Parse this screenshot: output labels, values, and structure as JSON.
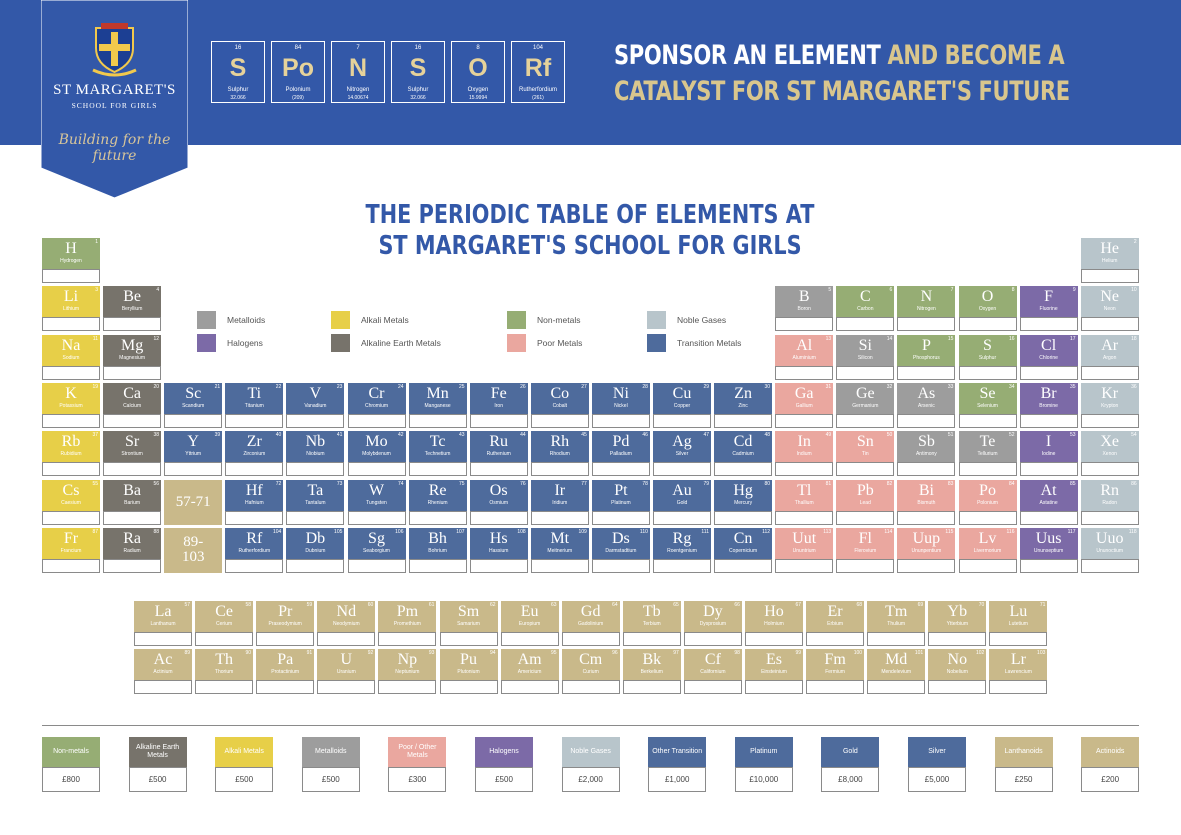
{
  "school": {
    "name": "ST MARGARET'S",
    "sub": "SCHOOL FOR GIRLS",
    "tagline": "Building for the future"
  },
  "sponsor_tiles": [
    {
      "number": "16",
      "symbol": "S",
      "name": "Sulphur",
      "mass": "32.066"
    },
    {
      "number": "84",
      "symbol": "Po",
      "name": "Polonium",
      "mass": "(209)"
    },
    {
      "number": "7",
      "symbol": "N",
      "name": "Nitrogen",
      "mass": "14.00674"
    },
    {
      "number": "16",
      "symbol": "S",
      "name": "Sulphur",
      "mass": "32.066"
    },
    {
      "number": "8",
      "symbol": "O",
      "name": "Oxygen",
      "mass": "15.9994"
    },
    {
      "number": "104",
      "symbol": "Rf",
      "name": "Rutherfordium",
      "mass": "(261)"
    }
  ],
  "headline": {
    "line1_white": "SPONSOR AN ELEMENT",
    "line1_gold": " AND BECOME A",
    "line2_gold": "CATALYST FOR ST MARGARET'S FUTURE"
  },
  "table_title": {
    "line1": "THE PERIODIC TABLE OF ELEMENTS AT",
    "line2": "ST MARGARET'S SCHOOL FOR GIRLS"
  },
  "colors": {
    "banner": "#3358a8",
    "nonmetal": "#96ad74",
    "alkali": "#e7cf48",
    "alkaline": "#77736b",
    "metalloid": "#9d9d9d",
    "poor": "#eaa79f",
    "halogen": "#7c6aa7",
    "noble": "#b8c5cb",
    "transition": "#4e6b9c",
    "lanthanoid": "#c9b98a",
    "actinoid": "#c9b98a",
    "platinum": "#4e6b9c",
    "gold": "#4e6b9c",
    "silver": "#4e6b9c"
  },
  "elements": [
    {
      "n": 1,
      "s": "H",
      "name": "Hydrogen",
      "c": "nonmetal",
      "row": 1,
      "col": 1
    },
    {
      "n": 2,
      "s": "He",
      "name": "Helium",
      "c": "noble",
      "row": 1,
      "col": 18
    },
    {
      "n": 3,
      "s": "Li",
      "name": "Lithium",
      "c": "alkali",
      "row": 2,
      "col": 1
    },
    {
      "n": 4,
      "s": "Be",
      "name": "Beryllium",
      "c": "alkaline",
      "row": 2,
      "col": 2
    },
    {
      "n": 5,
      "s": "B",
      "name": "Boron",
      "c": "metalloid",
      "row": 2,
      "col": 13
    },
    {
      "n": 6,
      "s": "C",
      "name": "Carbon",
      "c": "nonmetal",
      "row": 2,
      "col": 14
    },
    {
      "n": 7,
      "s": "N",
      "name": "Nitrogen",
      "c": "nonmetal",
      "row": 2,
      "col": 15
    },
    {
      "n": 8,
      "s": "O",
      "name": "Oxygen",
      "c": "nonmetal",
      "row": 2,
      "col": 16
    },
    {
      "n": 9,
      "s": "F",
      "name": "Fluorine",
      "c": "halogen",
      "row": 2,
      "col": 17
    },
    {
      "n": 10,
      "s": "Ne",
      "name": "Neon",
      "c": "noble",
      "row": 2,
      "col": 18
    },
    {
      "n": 11,
      "s": "Na",
      "name": "Sodium",
      "c": "alkali",
      "row": 3,
      "col": 1
    },
    {
      "n": 12,
      "s": "Mg",
      "name": "Magnesium",
      "c": "alkaline",
      "row": 3,
      "col": 2
    },
    {
      "n": 13,
      "s": "Al",
      "name": "Aluminium",
      "c": "poor",
      "row": 3,
      "col": 13
    },
    {
      "n": 14,
      "s": "Si",
      "name": "Silicon",
      "c": "metalloid",
      "row": 3,
      "col": 14
    },
    {
      "n": 15,
      "s": "P",
      "name": "Phosphorus",
      "c": "nonmetal",
      "row": 3,
      "col": 15
    },
    {
      "n": 16,
      "s": "S",
      "name": "Sulphur",
      "c": "nonmetal",
      "row": 3,
      "col": 16
    },
    {
      "n": 17,
      "s": "Cl",
      "name": "Chlorine",
      "c": "halogen",
      "row": 3,
      "col": 17
    },
    {
      "n": 18,
      "s": "Ar",
      "name": "Argon",
      "c": "noble",
      "row": 3,
      "col": 18
    },
    {
      "n": 19,
      "s": "K",
      "name": "Potassium",
      "c": "alkali",
      "row": 4,
      "col": 1
    },
    {
      "n": 20,
      "s": "Ca",
      "name": "Calcium",
      "c": "alkaline",
      "row": 4,
      "col": 2
    },
    {
      "n": 21,
      "s": "Sc",
      "name": "Scandium",
      "c": "transition",
      "row": 4,
      "col": 3
    },
    {
      "n": 22,
      "s": "Ti",
      "name": "Titanium",
      "c": "transition",
      "row": 4,
      "col": 4
    },
    {
      "n": 23,
      "s": "V",
      "name": "Vanadium",
      "c": "transition",
      "row": 4,
      "col": 5
    },
    {
      "n": 24,
      "s": "Cr",
      "name": "Chromium",
      "c": "transition",
      "row": 4,
      "col": 6
    },
    {
      "n": 25,
      "s": "Mn",
      "name": "Manganese",
      "c": "transition",
      "row": 4,
      "col": 7
    },
    {
      "n": 26,
      "s": "Fe",
      "name": "Iron",
      "c": "transition",
      "row": 4,
      "col": 8
    },
    {
      "n": 27,
      "s": "Co",
      "name": "Cobalt",
      "c": "transition",
      "row": 4,
      "col": 9
    },
    {
      "n": 28,
      "s": "Ni",
      "name": "Nickel",
      "c": "transition",
      "row": 4,
      "col": 10
    },
    {
      "n": 29,
      "s": "Cu",
      "name": "Copper",
      "c": "transition",
      "row": 4,
      "col": 11
    },
    {
      "n": 30,
      "s": "Zn",
      "name": "Zinc",
      "c": "transition",
      "row": 4,
      "col": 12
    },
    {
      "n": 31,
      "s": "Ga",
      "name": "Gallium",
      "c": "poor",
      "row": 4,
      "col": 13
    },
    {
      "n": 32,
      "s": "Ge",
      "name": "Germanium",
      "c": "metalloid",
      "row": 4,
      "col": 14
    },
    {
      "n": 33,
      "s": "As",
      "name": "Arsenic",
      "c": "metalloid",
      "row": 4,
      "col": 15
    },
    {
      "n": 34,
      "s": "Se",
      "name": "Selenium",
      "c": "nonmetal",
      "row": 4,
      "col": 16
    },
    {
      "n": 35,
      "s": "Br",
      "name": "Bromine",
      "c": "halogen",
      "row": 4,
      "col": 17
    },
    {
      "n": 36,
      "s": "Kr",
      "name": "Krypton",
      "c": "noble",
      "row": 4,
      "col": 18
    },
    {
      "n": 37,
      "s": "Rb",
      "name": "Rubidium",
      "c": "alkali",
      "row": 5,
      "col": 1
    },
    {
      "n": 38,
      "s": "Sr",
      "name": "Strontium",
      "c": "alkaline",
      "row": 5,
      "col": 2
    },
    {
      "n": 39,
      "s": "Y",
      "name": "Yttrium",
      "c": "transition",
      "row": 5,
      "col": 3
    },
    {
      "n": 40,
      "s": "Zr",
      "name": "Zirconium",
      "c": "transition",
      "row": 5,
      "col": 4
    },
    {
      "n": 41,
      "s": "Nb",
      "name": "Niobium",
      "c": "transition",
      "row": 5,
      "col": 5
    },
    {
      "n": 42,
      "s": "Mo",
      "name": "Molybdenum",
      "c": "transition",
      "row": 5,
      "col": 6
    },
    {
      "n": 43,
      "s": "Tc",
      "name": "Technetium",
      "c": "transition",
      "row": 5,
      "col": 7
    },
    {
      "n": 44,
      "s": "Ru",
      "name": "Ruthenium",
      "c": "transition",
      "row": 5,
      "col": 8
    },
    {
      "n": 45,
      "s": "Rh",
      "name": "Rhodium",
      "c": "transition",
      "row": 5,
      "col": 9
    },
    {
      "n": 46,
      "s": "Pd",
      "name": "Palladium",
      "c": "transition",
      "row": 5,
      "col": 10
    },
    {
      "n": 47,
      "s": "Ag",
      "name": "Silver",
      "c": "transition",
      "row": 5,
      "col": 11
    },
    {
      "n": 48,
      "s": "Cd",
      "name": "Cadmium",
      "c": "transition",
      "row": 5,
      "col": 12
    },
    {
      "n": 49,
      "s": "In",
      "name": "Indium",
      "c": "poor",
      "row": 5,
      "col": 13
    },
    {
      "n": 50,
      "s": "Sn",
      "name": "Tin",
      "c": "poor",
      "row": 5,
      "col": 14
    },
    {
      "n": 51,
      "s": "Sb",
      "name": "Antimony",
      "c": "metalloid",
      "row": 5,
      "col": 15
    },
    {
      "n": 52,
      "s": "Te",
      "name": "Tellurium",
      "c": "metalloid",
      "row": 5,
      "col": 16
    },
    {
      "n": 53,
      "s": "I",
      "name": "Iodine",
      "c": "halogen",
      "row": 5,
      "col": 17
    },
    {
      "n": 54,
      "s": "Xe",
      "name": "Xenon",
      "c": "noble",
      "row": 5,
      "col": 18
    },
    {
      "n": 55,
      "s": "Cs",
      "name": "Caesium",
      "c": "alkali",
      "row": 6,
      "col": 1
    },
    {
      "n": 56,
      "s": "Ba",
      "name": "Barium",
      "c": "alkaline",
      "row": 6,
      "col": 2
    },
    {
      "n": 72,
      "s": "Hf",
      "name": "Hafnium",
      "c": "transition",
      "row": 6,
      "col": 4
    },
    {
      "n": 73,
      "s": "Ta",
      "name": "Tantalum",
      "c": "transition",
      "row": 6,
      "col": 5
    },
    {
      "n": 74,
      "s": "W",
      "name": "Tungsten",
      "c": "transition",
      "row": 6,
      "col": 6
    },
    {
      "n": 75,
      "s": "Re",
      "name": "Rhenium",
      "c": "transition",
      "row": 6,
      "col": 7
    },
    {
      "n": 76,
      "s": "Os",
      "name": "Osmium",
      "c": "transition",
      "row": 6,
      "col": 8
    },
    {
      "n": 77,
      "s": "Ir",
      "name": "Iridium",
      "c": "transition",
      "row": 6,
      "col": 9
    },
    {
      "n": 78,
      "s": "Pt",
      "name": "Platinum",
      "c": "transition",
      "row": 6,
      "col": 10
    },
    {
      "n": 79,
      "s": "Au",
      "name": "Gold",
      "c": "transition",
      "row": 6,
      "col": 11
    },
    {
      "n": 80,
      "s": "Hg",
      "name": "Mercury",
      "c": "transition",
      "row": 6,
      "col": 12
    },
    {
      "n": 81,
      "s": "Tl",
      "name": "Thallium",
      "c": "poor",
      "row": 6,
      "col": 13
    },
    {
      "n": 82,
      "s": "Pb",
      "name": "Lead",
      "c": "poor",
      "row": 6,
      "col": 14
    },
    {
      "n": 83,
      "s": "Bi",
      "name": "Bismuth",
      "c": "poor",
      "row": 6,
      "col": 15
    },
    {
      "n": 84,
      "s": "Po",
      "name": "Polonium",
      "c": "poor",
      "row": 6,
      "col": 16
    },
    {
      "n": 85,
      "s": "At",
      "name": "Astatine",
      "c": "halogen",
      "row": 6,
      "col": 17
    },
    {
      "n": 86,
      "s": "Rn",
      "name": "Radon",
      "c": "noble",
      "row": 6,
      "col": 18
    },
    {
      "n": 87,
      "s": "Fr",
      "name": "Francium",
      "c": "alkali",
      "row": 7,
      "col": 1
    },
    {
      "n": 88,
      "s": "Ra",
      "name": "Radium",
      "c": "alkaline",
      "row": 7,
      "col": 2
    },
    {
      "n": 104,
      "s": "Rf",
      "name": "Rutherfordium",
      "c": "transition",
      "row": 7,
      "col": 4
    },
    {
      "n": 105,
      "s": "Db",
      "name": "Dubnium",
      "c": "transition",
      "row": 7,
      "col": 5
    },
    {
      "n": 106,
      "s": "Sg",
      "name": "Seaborgium",
      "c": "transition",
      "row": 7,
      "col": 6
    },
    {
      "n": 107,
      "s": "Bh",
      "name": "Bohrium",
      "c": "transition",
      "row": 7,
      "col": 7
    },
    {
      "n": 108,
      "s": "Hs",
      "name": "Hassium",
      "c": "transition",
      "row": 7,
      "col": 8
    },
    {
      "n": 109,
      "s": "Mt",
      "name": "Meitnerium",
      "c": "transition",
      "row": 7,
      "col": 9
    },
    {
      "n": 110,
      "s": "Ds",
      "name": "Darmstadtium",
      "c": "transition",
      "row": 7,
      "col": 10
    },
    {
      "n": 111,
      "s": "Rg",
      "name": "Roentgenium",
      "c": "transition",
      "row": 7,
      "col": 11
    },
    {
      "n": 112,
      "s": "Cn",
      "name": "Copernicium",
      "c": "transition",
      "row": 7,
      "col": 12
    },
    {
      "n": 113,
      "s": "Uut",
      "name": "Ununtrium",
      "c": "poor",
      "row": 7,
      "col": 13
    },
    {
      "n": 114,
      "s": "Fl",
      "name": "Flerovium",
      "c": "poor",
      "row": 7,
      "col": 14
    },
    {
      "n": 115,
      "s": "Uup",
      "name": "Ununpentium",
      "c": "poor",
      "row": 7,
      "col": 15
    },
    {
      "n": 116,
      "s": "Lv",
      "name": "Livermorium",
      "c": "poor",
      "row": 7,
      "col": 16
    },
    {
      "n": 117,
      "s": "Uus",
      "name": "Ununseptium",
      "c": "halogen",
      "row": 7,
      "col": 17
    },
    {
      "n": 118,
      "s": "Uuo",
      "name": "Ununoctium",
      "c": "noble",
      "row": 7,
      "col": 18
    },
    {
      "n": 57,
      "s": "La",
      "name": "Lanthanum",
      "c": "lanthanoid",
      "row": 9,
      "col": 0
    },
    {
      "n": 58,
      "s": "Ce",
      "name": "Cerium",
      "c": "lanthanoid",
      "row": 9,
      "col": 1
    },
    {
      "n": 59,
      "s": "Pr",
      "name": "Praseodymium",
      "c": "lanthanoid",
      "row": 9,
      "col": 2
    },
    {
      "n": 60,
      "s": "Nd",
      "name": "Neodymium",
      "c": "lanthanoid",
      "row": 9,
      "col": 3
    },
    {
      "n": 61,
      "s": "Pm",
      "name": "Promethium",
      "c": "lanthanoid",
      "row": 9,
      "col": 4
    },
    {
      "n": 62,
      "s": "Sm",
      "name": "Samarium",
      "c": "lanthanoid",
      "row": 9,
      "col": 5
    },
    {
      "n": 63,
      "s": "Eu",
      "name": "Europium",
      "c": "lanthanoid",
      "row": 9,
      "col": 6
    },
    {
      "n": 64,
      "s": "Gd",
      "name": "Gadolinium",
      "c": "lanthanoid",
      "row": 9,
      "col": 7
    },
    {
      "n": 65,
      "s": "Tb",
      "name": "Terbium",
      "c": "lanthanoid",
      "row": 9,
      "col": 8
    },
    {
      "n": 66,
      "s": "Dy",
      "name": "Dysprosium",
      "c": "lanthanoid",
      "row": 9,
      "col": 9
    },
    {
      "n": 67,
      "s": "Ho",
      "name": "Holmium",
      "c": "lanthanoid",
      "row": 9,
      "col": 10
    },
    {
      "n": 68,
      "s": "Er",
      "name": "Erbium",
      "c": "lanthanoid",
      "row": 9,
      "col": 11
    },
    {
      "n": 69,
      "s": "Tm",
      "name": "Thulium",
      "c": "lanthanoid",
      "row": 9,
      "col": 12
    },
    {
      "n": 70,
      "s": "Yb",
      "name": "Ytterbium",
      "c": "lanthanoid",
      "row": 9,
      "col": 13
    },
    {
      "n": 71,
      "s": "Lu",
      "name": "Lutetium",
      "c": "lanthanoid",
      "row": 9,
      "col": 14
    },
    {
      "n": 89,
      "s": "Ac",
      "name": "Actinium",
      "c": "actinoid",
      "row": 10,
      "col": 0
    },
    {
      "n": 90,
      "s": "Th",
      "name": "Thorium",
      "c": "actinoid",
      "row": 10,
      "col": 1
    },
    {
      "n": 91,
      "s": "Pa",
      "name": "Protactinium",
      "c": "actinoid",
      "row": 10,
      "col": 2
    },
    {
      "n": 92,
      "s": "U",
      "name": "Uranium",
      "c": "actinoid",
      "row": 10,
      "col": 3
    },
    {
      "n": 93,
      "s": "Np",
      "name": "Neptunium",
      "c": "actinoid",
      "row": 10,
      "col": 4
    },
    {
      "n": 94,
      "s": "Pu",
      "name": "Plutonium",
      "c": "actinoid",
      "row": 10,
      "col": 5
    },
    {
      "n": 95,
      "s": "Am",
      "name": "Americium",
      "c": "actinoid",
      "row": 10,
      "col": 6
    },
    {
      "n": 96,
      "s": "Cm",
      "name": "Curium",
      "c": "actinoid",
      "row": 10,
      "col": 7
    },
    {
      "n": 97,
      "s": "Bk",
      "name": "Berkelium",
      "c": "actinoid",
      "row": 10,
      "col": 8
    },
    {
      "n": 98,
      "s": "Cf",
      "name": "Californium",
      "c": "actinoid",
      "row": 10,
      "col": 9
    },
    {
      "n": 99,
      "s": "Es",
      "name": "Einsteinium",
      "c": "actinoid",
      "row": 10,
      "col": 10
    },
    {
      "n": 100,
      "s": "Fm",
      "name": "Fermium",
      "c": "actinoid",
      "row": 10,
      "col": 11
    },
    {
      "n": 101,
      "s": "Md",
      "name": "Mendelevium",
      "c": "actinoid",
      "row": 10,
      "col": 12
    },
    {
      "n": 102,
      "s": "No",
      "name": "Nobelium",
      "c": "actinoid",
      "row": 10,
      "col": 13
    },
    {
      "n": 103,
      "s": "Lr",
      "name": "Lawrencium",
      "c": "actinoid",
      "row": 10,
      "col": 14
    }
  ],
  "series_placeholders": [
    {
      "label": "57-71",
      "c": "lanthanoid",
      "row": 6,
      "col": 3
    },
    {
      "label": "89-103",
      "c": "actinoid",
      "row": 7,
      "col": 3
    }
  ],
  "legend": [
    {
      "label": "Metalloids",
      "c": "metalloid"
    },
    {
      "label": "Halogens",
      "c": "halogen"
    },
    {
      "label": "Alkali Metals",
      "c": "alkali"
    },
    {
      "label": "Alkaline Earth Metals",
      "c": "alkaline"
    },
    {
      "label": "Non-metals",
      "c": "nonmetal"
    },
    {
      "label": "Poor Metals",
      "c": "poor"
    },
    {
      "label": "Noble Gases",
      "c": "noble"
    },
    {
      "label": "Transition Metals",
      "c": "transition"
    }
  ],
  "prices": [
    {
      "label": "Non-metals",
      "price": "£800",
      "c": "nonmetal"
    },
    {
      "label": "Alkaline Earth Metals",
      "price": "£500",
      "c": "alkaline"
    },
    {
      "label": "Alkali Metals",
      "price": "£500",
      "c": "alkali"
    },
    {
      "label": "Metalloids",
      "price": "£500",
      "c": "metalloid"
    },
    {
      "label": "Poor / Other Metals",
      "price": "£300",
      "c": "poor"
    },
    {
      "label": "Halogens",
      "price": "£500",
      "c": "halogen"
    },
    {
      "label": "Noble Gases",
      "price": "£2,000",
      "c": "noble"
    },
    {
      "label": "Other Transition",
      "price": "£1,000",
      "c": "transition"
    },
    {
      "label": "Platinum",
      "price": "£10,000",
      "c": "platinum"
    },
    {
      "label": "Gold",
      "price": "£8,000",
      "c": "gold"
    },
    {
      "label": "Silver",
      "price": "£5,000",
      "c": "silver"
    },
    {
      "label": "Lanthanoids",
      "price": "£250",
      "c": "lanthanoid"
    },
    {
      "label": "Actinoids",
      "price": "£200",
      "c": "actinoid"
    }
  ]
}
